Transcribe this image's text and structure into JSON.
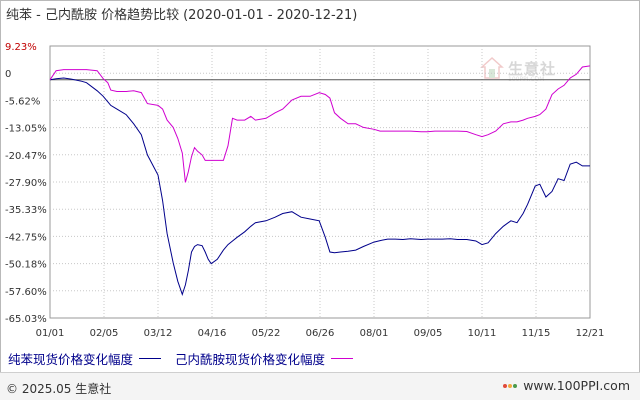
{
  "chart_data": {
    "type": "line",
    "title": "纯苯 - 己内酰胺 价格趋势比较",
    "date_range": "(2020-01-01 - 2020-12-21)",
    "x_tick_labels": [
      "01/01",
      "02/05",
      "03/12",
      "04/16",
      "05/22",
      "06/26",
      "08/01",
      "09/05",
      "10/11",
      "11/15",
      "12/21"
    ],
    "y_tick_labels": [
      "9.23%",
      "0",
      "-5.62%",
      "-13.05%",
      "-20.47%",
      "-27.90%",
      "-35.33%",
      "-42.75%",
      "-50.18%",
      "-57.60%",
      "-65.03%"
    ],
    "ylim": [
      -65.03,
      9.23
    ],
    "grid": true,
    "x": [
      "2020-01-01",
      "2020-01-05",
      "2020-01-10",
      "2020-01-15",
      "2020-01-22",
      "2020-01-25",
      "2020-02-01",
      "2020-02-05",
      "2020-02-08",
      "2020-02-10",
      "2020-02-14",
      "2020-02-20",
      "2020-02-25",
      "2020-03-01",
      "2020-03-05",
      "2020-03-12",
      "2020-03-15",
      "2020-03-18",
      "2020-03-22",
      "2020-03-25",
      "2020-03-28",
      "2020-03-30",
      "2020-04-01",
      "2020-04-03",
      "2020-04-05",
      "2020-04-07",
      "2020-04-10",
      "2020-04-12",
      "2020-04-14",
      "2020-04-16",
      "2020-04-20",
      "2020-04-24",
      "2020-04-27",
      "2020-04-30",
      "2020-05-03",
      "2020-05-08",
      "2020-05-12",
      "2020-05-15",
      "2020-05-22",
      "2020-05-28",
      "2020-06-02",
      "2020-06-08",
      "2020-06-14",
      "2020-06-20",
      "2020-06-26",
      "2020-06-30",
      "2020-07-03",
      "2020-07-06",
      "2020-07-10",
      "2020-07-15",
      "2020-07-20",
      "2020-07-25",
      "2020-08-01",
      "2020-08-05",
      "2020-08-10",
      "2020-08-15",
      "2020-08-20",
      "2020-08-25",
      "2020-09-01",
      "2020-09-05",
      "2020-09-10",
      "2020-09-15",
      "2020-09-20",
      "2020-09-25",
      "2020-10-01",
      "2020-10-07",
      "2020-10-11",
      "2020-10-15",
      "2020-10-20",
      "2020-10-25",
      "2020-10-30",
      "2020-11-03",
      "2020-11-07",
      "2020-11-10",
      "2020-11-15",
      "2020-11-18",
      "2020-11-22",
      "2020-11-26",
      "2020-11-30",
      "2020-12-04",
      "2020-12-08",
      "2020-12-12",
      "2020-12-16",
      "2020-12-21"
    ],
    "series": [
      {
        "name": "纯苯现货价格变化幅度",
        "color": "#00008b",
        "values": [
          0.0,
          0.3,
          0.5,
          0.2,
          -0.4,
          -0.8,
          -3.0,
          -4.5,
          -6.0,
          -7.0,
          -8.0,
          -9.5,
          -12.0,
          -15.0,
          -20.5,
          -26.0,
          -33.0,
          -42.0,
          -50.0,
          -55.0,
          -58.6,
          -56.0,
          -52.0,
          -47.0,
          -45.5,
          -45.0,
          -45.3,
          -47.0,
          -49.0,
          -50.2,
          -49.0,
          -46.5,
          -45.0,
          -44.0,
          -43.0,
          -41.5,
          -40.0,
          -39.0,
          -38.5,
          -37.5,
          -36.5,
          -36.0,
          -37.5,
          -38.0,
          -38.5,
          -43.0,
          -47.0,
          -47.2,
          -47.0,
          -46.8,
          -46.5,
          -45.5,
          -44.3,
          -43.9,
          -43.5,
          -43.5,
          -43.6,
          -43.4,
          -43.6,
          -43.5,
          -43.5,
          -43.5,
          -43.4,
          -43.6,
          -43.6,
          -44.0,
          -45.0,
          -44.5,
          -42.0,
          -40.0,
          -38.5,
          -39.0,
          -36.5,
          -34.0,
          -29.0,
          -28.5,
          -32.0,
          -30.5,
          -27.0,
          -27.5,
          -23.0,
          -22.5,
          -23.5,
          -23.5
        ]
      },
      {
        "name": "己内酰胺现货价格变化幅度",
        "color": "#d000d0",
        "values": [
          0.0,
          2.5,
          2.8,
          2.8,
          2.8,
          2.8,
          2.5,
          0.3,
          -0.8,
          -2.8,
          -3.2,
          -3.2,
          -3.0,
          -3.5,
          -6.5,
          -7.0,
          -8.0,
          -11.0,
          -13.0,
          -16.0,
          -20.0,
          -28.0,
          -25.0,
          -21.0,
          -18.5,
          -19.5,
          -20.5,
          -22.0,
          -22.0,
          -22.0,
          -22.0,
          -22.0,
          -18.0,
          -10.5,
          -11.0,
          -11.0,
          -10.0,
          -11.0,
          -10.5,
          -9.0,
          -8.0,
          -5.5,
          -4.5,
          -4.5,
          -3.5,
          -4.0,
          -5.0,
          -9.0,
          -10.5,
          -12.0,
          -12.0,
          -13.0,
          -13.5,
          -14.0,
          -14.0,
          -14.0,
          -14.0,
          -14.0,
          -14.2,
          -14.2,
          -14.0,
          -14.0,
          -14.0,
          -14.0,
          -14.1,
          -15.0,
          -15.5,
          -15.0,
          -14.0,
          -12.0,
          -11.5,
          -11.5,
          -11.0,
          -10.5,
          -10.0,
          -9.5,
          -8.0,
          -4.0,
          -2.5,
          -1.5,
          0.5,
          1.5,
          3.5,
          3.8
        ]
      }
    ]
  },
  "legend": {
    "items": [
      {
        "label": "纯苯现货价格变化幅度",
        "color": "#00008b"
      },
      {
        "label": "己内酰胺现货价格变化幅度",
        "color": "#d000d0"
      }
    ]
  },
  "watermark": {
    "text": "生意社",
    "sub": "100PPI.COM"
  },
  "footer": {
    "copyright": "© 2025.05 生意社",
    "site": "www.100PPI.com"
  }
}
